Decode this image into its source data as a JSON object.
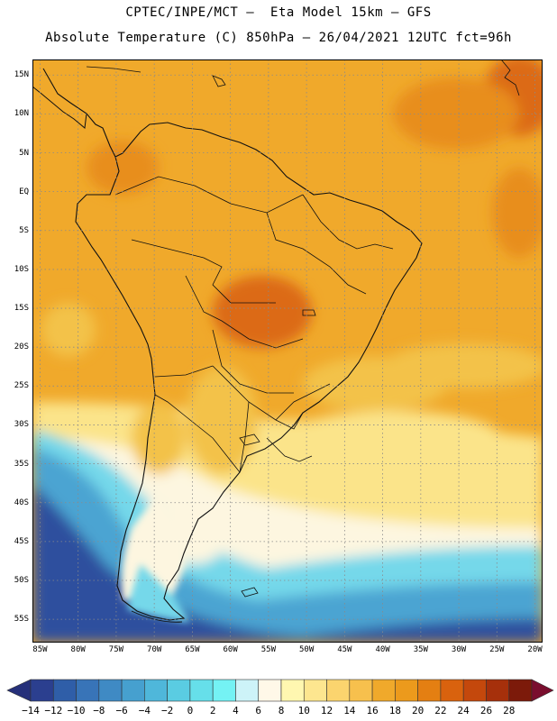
{
  "header": {
    "line1": "CPTEC/INPE/MCT –  Eta Model 15km – GFS",
    "line2": "Absolute Temperature (C) 850hPa – 26/04/2021 12UTC fct=96h"
  },
  "map": {
    "lon_range": [
      -86,
      -19
    ],
    "lat_range": [
      -58,
      17
    ],
    "lat_ticks": [
      "15N",
      "10N",
      "5N",
      "EQ",
      "5S",
      "10S",
      "15S",
      "20S",
      "25S",
      "30S",
      "35S",
      "40S",
      "45S",
      "50S",
      "55S"
    ],
    "lat_values": [
      15,
      10,
      5,
      0,
      -5,
      -10,
      -15,
      -20,
      -25,
      -30,
      -35,
      -40,
      -45,
      -50,
      -55
    ],
    "lon_ticks": [
      "85W",
      "80W",
      "75W",
      "70W",
      "65W",
      "60W",
      "55W",
      "50W",
      "45W",
      "40W",
      "35W",
      "30W",
      "25W",
      "20W"
    ],
    "lon_values": [
      -85,
      -80,
      -75,
      -70,
      -65,
      -60,
      -55,
      -50,
      -45,
      -40,
      -35,
      -30,
      -25,
      -20
    ],
    "gridline_color": "#8a8a8a"
  },
  "colorbar": {
    "labels": [
      "-14",
      "-12",
      "-10",
      "-8",
      "-6",
      "-4",
      "-2",
      "0",
      "2",
      "4",
      "6",
      "8",
      "10",
      "12",
      "14",
      "16",
      "18",
      "20",
      "22",
      "24",
      "26",
      "28"
    ],
    "colors": [
      "#2b3f8f",
      "#2f5ea8",
      "#3874b8",
      "#3f8ac4",
      "#46a0cf",
      "#4fb7da",
      "#5acce2",
      "#66dfea",
      "#74f2f4",
      "#cdf3f8",
      "#fff8e8",
      "#fff7b0",
      "#fde68f",
      "#fbd46e",
      "#f7c04d",
      "#f0a92b",
      "#ec9a1c",
      "#e47f12",
      "#d9620e",
      "#c4480c",
      "#a6300b",
      "#7c1a0a"
    ],
    "left_arrow_color": "#26307a",
    "right_arrow_color": "#7a0e2e"
  },
  "colors": {
    "ocean_cold": "#2e4f9e",
    "ocean_mid": "#4ca4d2",
    "ocean_cool": "#75d8ea",
    "pale": "#fdf6e0",
    "yellow": "#fbe48a",
    "gold": "#f3c24a",
    "orange": "#f0a92b",
    "deep_orange": "#e88e1f",
    "hot": "#dc6a18"
  }
}
